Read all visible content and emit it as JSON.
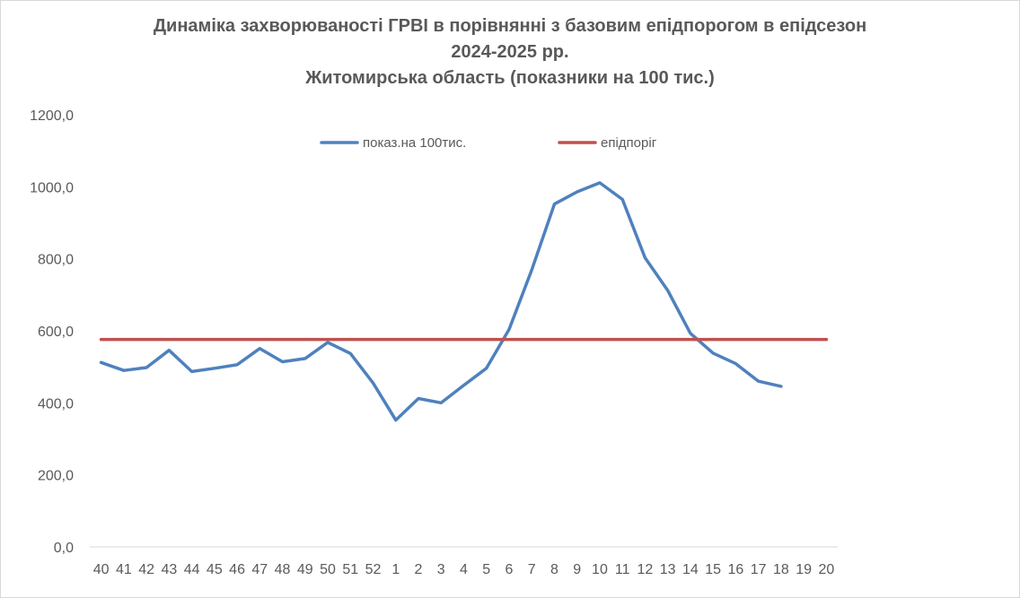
{
  "chart_data": {
    "type": "line",
    "title_lines": [
      "Динаміка захворюваності ГРВІ в порівнянні з базовим епідпорогом в епідсезон",
      "2024-2025 рр.",
      "Житомирська область (показники на 100 тис.)"
    ],
    "xlabel": "",
    "ylabel": "",
    "categories": [
      "40",
      "41",
      "42",
      "43",
      "44",
      "45",
      "46",
      "47",
      "48",
      "49",
      "50",
      "51",
      "52",
      "1",
      "2",
      "3",
      "4",
      "5",
      "6",
      "7",
      "8",
      "9",
      "10",
      "11",
      "12",
      "13",
      "14",
      "15",
      "16",
      "17",
      "18",
      "19",
      "20"
    ],
    "y_ticks": [
      "0,0",
      "200,0",
      "400,0",
      "600,0",
      "800,0",
      "1000,0",
      "1200,0"
    ],
    "ylim": [
      0,
      1200
    ],
    "legend_position": "top",
    "series": [
      {
        "name": "показ.на 100тис.",
        "color": "#4f81bd",
        "values": [
          512,
          490,
          498,
          546,
          487,
          496,
          506,
          551,
          514,
          523,
          568,
          537,
          455,
          352,
          412,
          400,
          449,
          496,
          604,
          769,
          952,
          986,
          1011,
          965,
          803,
          712,
          593,
          538,
          509,
          460,
          446,
          null,
          null
        ]
      },
      {
        "name": "епідпоріг",
        "color": "#c0504d",
        "values": [
          576,
          576,
          576,
          576,
          576,
          576,
          576,
          576,
          576,
          576,
          576,
          576,
          576,
          576,
          576,
          576,
          576,
          576,
          576,
          576,
          576,
          576,
          576,
          576,
          576,
          576,
          576,
          576,
          576,
          576,
          576,
          576,
          576
        ]
      }
    ],
    "grid": false
  }
}
